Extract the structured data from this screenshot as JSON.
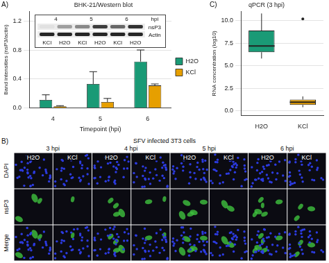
{
  "panels": [
    "A)",
    "B)",
    "C)"
  ],
  "chart_data": [
    {
      "type": "bar",
      "title": "BHK-21/Western blot",
      "categories": [
        "4",
        "5",
        "6"
      ],
      "x_label": "Timepoint (hpi)",
      "y_label": "Band intensities (nsP3/actin)",
      "series": [
        {
          "name": "H2O",
          "color": "#1a9a76",
          "values": [
            0.11,
            0.33,
            0.64
          ],
          "errors": [
            0.07,
            0.17,
            0.16
          ]
        },
        {
          "name": "KCl",
          "color": "#e69f00",
          "values": [
            0.02,
            0.08,
            0.31
          ],
          "errors": [
            0.01,
            0.05,
            0.02
          ]
        }
      ],
      "ylim": [
        0,
        1.33
      ],
      "yticks": [
        {
          "value": 0,
          "label": "0.0"
        },
        0.4,
        0.8,
        1.2
      ],
      "grid": true,
      "legend": "right"
    },
    {
      "type": "box",
      "title": "qPCR (3 hpi)",
      "categories": [
        "H2O",
        "KCl"
      ],
      "y_label": "RNA concentration (log10)",
      "boxes": [
        {
          "min": 5.8,
          "q1": 6.5,
          "median": 7.2,
          "q3": 8.9,
          "max": 10.8,
          "outliers": []
        },
        {
          "min": 0.4,
          "q1": 0.65,
          "median": 0.95,
          "q3": 1.25,
          "max": 1.6,
          "outliers": [
            10.2
          ]
        }
      ],
      "colors": [
        "#1a9a76",
        "#e69f00"
      ],
      "ylim": [
        -0.5,
        11
      ],
      "yticks": [
        {
          "value": 0,
          "label": "0.0"
        },
        2.5,
        {
          "value": 5,
          "label": "5.0"
        },
        7.5,
        {
          "value": 10,
          "label": "10.0"
        }
      ],
      "grid": true
    }
  ],
  "blot": {
    "timepoints": [
      "4",
      "5",
      "6"
    ],
    "hpi_label": "hpi",
    "rows": [
      "nsP3",
      "Actin"
    ],
    "lanes": [
      "KCl",
      "H2O",
      "KCl",
      "H2O",
      "KCl",
      "H2O"
    ]
  },
  "microscopy": {
    "title": "SFV infected 3T3 cells",
    "timepoints": [
      "3 hpi",
      "4 hpi",
      "5 hpi",
      "6 hpi"
    ],
    "conditions": [
      "H2O",
      "KCl"
    ],
    "rows": [
      "DAPI",
      "nsP3",
      "Merge"
    ]
  }
}
